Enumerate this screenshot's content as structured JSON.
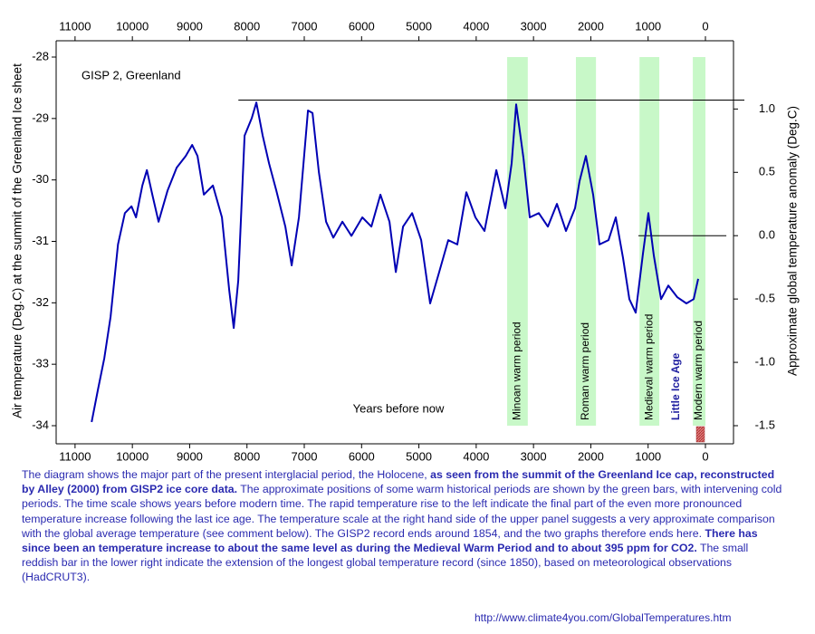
{
  "chart_data": {
    "type": "line",
    "title": "GISP 2, Greenland",
    "xlabel": "Years before now",
    "ylabel": "Air temperature (Deg.C) at the summit of the Greenland Ice sheet",
    "y2label": "Approximate global temperature anomaly (Deg.C)",
    "color": "#0000b4",
    "x": [
      10711,
      10600,
      10490,
      10380,
      10250,
      10130,
      10016,
      9937,
      9826,
      9747,
      9652,
      9542,
      9384,
      9226,
      9068,
      8957,
      8863,
      8752,
      8594,
      8436,
      8310,
      8231,
      8152,
      8041,
      7915,
      7836,
      7725,
      7615,
      7488,
      7330,
      7220,
      7093,
      6935,
      6856,
      6746,
      6619,
      6493,
      6335,
      6177,
      5987,
      5829,
      5671,
      5513,
      5403,
      5276,
      5118,
      4960,
      4803,
      4645,
      4487,
      4329,
      4171,
      4013,
      3855,
      3649,
      3491,
      3381,
      3302,
      3175,
      3065,
      2907,
      2749,
      2591,
      2433,
      2275,
      2196,
      2085,
      1959,
      1848,
      1690,
      1564,
      1438,
      1327,
      1216,
      1090,
      995,
      900,
      774,
      648,
      490,
      332,
      205,
      126
    ],
    "values": [
      -33.94,
      -33.41,
      -32.9,
      -32.23,
      -31.05,
      -30.54,
      -30.43,
      -30.61,
      -30.09,
      -29.84,
      -30.24,
      -30.68,
      -30.17,
      -29.8,
      -29.61,
      -29.43,
      -29.61,
      -30.24,
      -30.09,
      -30.61,
      -31.79,
      -32.41,
      -31.64,
      -29.28,
      -28.99,
      -28.74,
      -29.28,
      -29.73,
      -30.17,
      -30.76,
      -31.39,
      -30.61,
      -28.87,
      -28.91,
      -29.87,
      -30.68,
      -30.94,
      -30.68,
      -30.91,
      -30.61,
      -30.76,
      -30.24,
      -30.68,
      -31.5,
      -30.76,
      -30.54,
      -30.98,
      -32.01,
      -31.5,
      -30.98,
      -31.05,
      -30.2,
      -30.61,
      -30.83,
      -29.84,
      -30.46,
      -29.73,
      -28.77,
      -29.65,
      -30.61,
      -30.54,
      -30.76,
      -30.39,
      -30.83,
      -30.46,
      -30.02,
      -29.61,
      -30.24,
      -31.05,
      -30.98,
      -30.61,
      -31.27,
      -31.94,
      -32.16,
      -31.2,
      -30.54,
      -31.23,
      -31.94,
      -31.72,
      -31.91,
      -32.01,
      -31.94,
      -31.61
    ],
    "xlim": [
      11330,
      -490
    ],
    "xticks": [
      11000,
      10000,
      9000,
      8000,
      7000,
      6000,
      5000,
      4000,
      3000,
      2000,
      1000,
      0
    ],
    "ylim": [
      -34,
      -28
    ],
    "yticks": [
      -34,
      -33,
      -32,
      -31,
      -30,
      -29,
      -28
    ],
    "y2lim": [
      -1.5,
      1.41
    ],
    "y2ticks": [
      {
        "value": 1.0,
        "label": "1.0"
      },
      0.5,
      {
        "value": 0.0,
        "label": "0.0"
      },
      -0.5,
      {
        "value": -1.0,
        "label": "-1.0"
      },
      -1.5
    ],
    "band_color": "#c8f8c8",
    "periods": [
      {
        "label": "Minoan warm period",
        "from": 3460,
        "to": 3100
      },
      {
        "label": "Roman warm period",
        "from": 2260,
        "to": 1910
      },
      {
        "label": "Medieval warm period",
        "from": 1150,
        "to": 805
      },
      {
        "label": "Modern warm period",
        "from": 220,
        "to": 0
      }
    ],
    "annotations": [
      {
        "text": "Little Ice Age",
        "x": 505
      }
    ],
    "reference_lines": [
      {
        "value": 1.07,
        "from": 8150,
        "to": -680
      },
      {
        "value": 0.0,
        "from": 1170,
        "to": -365
      }
    ]
  },
  "description": [
    {
      "text": "The diagram shows the major part of the present interglacial period, the Holocene, ",
      "bold": false
    },
    {
      "text": "as seen from the summit of the Greenland Ice cap, reconstructed by Alley (2000) from GISP2 ice core data.",
      "bold": true
    },
    {
      "text": " The approximate positions of some warm historical periods are shown by the green bars, with intervening cold periods. The time scale shows years before modern time. The rapid temperature rise to the left indicate the final part of the even more pronounced temperature increase following the last ice age. The temperature scale at the right hand side of the upper panel suggests a very approximate comparison with the global average temperature (see comment below). The GISP2 record ends around 1854, and the two graphs therefore ends here. ",
      "bold": false
    },
    {
      "text": "There has since been an temperature increase to about the same level as during the Medieval Warm Period and to about 395 ppm for CO2.",
      "bold": true
    },
    {
      "text": " The small reddish bar in the lower right indicate the extension of the longest global temperature record (since 1850), based on meteorological observations (HadCRUT3).",
      "bold": false
    }
  ],
  "url": "http://www.climate4you.com/GlobalTemperatures.htm"
}
